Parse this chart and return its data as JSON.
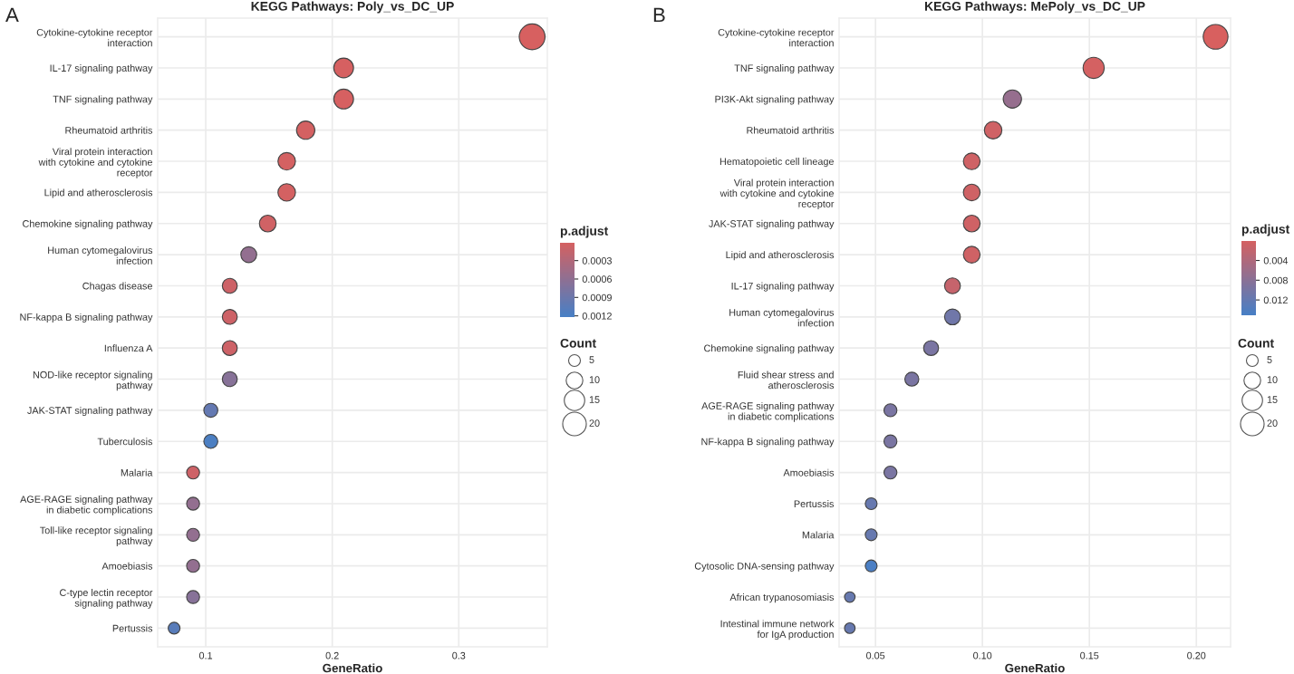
{
  "chart_data": [
    {
      "type": "bubble",
      "orientation": "horizontal",
      "title": "KEGG Pathways: Poly_vs_DC_UP",
      "xlabel": "GeneRatio",
      "clabel": "p.adjust",
      "legend_title": "Count",
      "grid": true,
      "annotations": [
        "A"
      ],
      "categories": [
        "Cytokine-cytokine receptor\ninteraction",
        "IL-17 signaling pathway",
        "TNF signaling pathway",
        "Rheumatoid arthritis",
        "Viral protein interaction\nwith cytokine and cytokine\nreceptor",
        "Lipid and atherosclerosis",
        "Chemokine signaling pathway",
        "Human cytomegalovirus\ninfection",
        "Chagas disease",
        "NF-kappa B signaling pathway",
        "Influenza A",
        "NOD-like receptor signaling\npathway",
        "JAK-STAT signaling pathway",
        "Tuberculosis",
        "Malaria",
        "AGE-RAGE signaling pathway\nin diabetic complications",
        "Toll-like receptor signaling\npathway",
        "Amoebiasis",
        "C-type lectin receptor\nsignaling pathway",
        "Pertussis"
      ],
      "values": [
        0.358,
        0.209,
        0.209,
        0.179,
        0.164,
        0.164,
        0.149,
        0.134,
        0.119,
        0.119,
        0.119,
        0.119,
        0.104,
        0.104,
        0.09,
        0.09,
        0.09,
        0.09,
        0.09,
        0.075
      ],
      "sizes": [
        24,
        14,
        14,
        12,
        11,
        11,
        10,
        9,
        8,
        8,
        8,
        8,
        7,
        7,
        6,
        6,
        6,
        6,
        6,
        5
      ],
      "cvalues": [
        2e-05,
        3e-05,
        3e-05,
        5e-05,
        5e-05,
        5e-05,
        8e-05,
        0.0006,
        0.0001,
        0.0001,
        0.0001,
        0.0007,
        0.001,
        0.0012,
        0.0001,
        0.0006,
        0.0006,
        0.0006,
        0.0007,
        0.0011
      ],
      "size_legend": [
        5,
        10,
        15,
        20
      ],
      "clim": [
        0.00122,
        1e-05
      ],
      "cticks": [
        0.0003,
        0.0006,
        0.0009,
        0.0012
      ],
      "xlim": [
        0.062,
        0.37
      ],
      "xticks": [
        0.1,
        0.2,
        0.3
      ]
    },
    {
      "type": "bubble",
      "orientation": "horizontal",
      "title": "KEGG Pathways: MePoly_vs_DC_UP",
      "xlabel": "GeneRatio",
      "clabel": "p.adjust",
      "legend_title": "Count",
      "grid": true,
      "annotations": [
        "B"
      ],
      "categories": [
        "Cytokine-cytokine receptor\ninteraction",
        "TNF signaling pathway",
        "PI3K-Akt signaling pathway",
        "Rheumatoid arthritis",
        "Hematopoietic cell lineage",
        "Viral protein interaction\nwith cytokine and cytokine\nreceptor",
        "JAK-STAT signaling pathway",
        "Lipid and atherosclerosis",
        "IL-17 signaling pathway",
        "Human cytomegalovirus\ninfection",
        "Chemokine signaling pathway",
        "Fluid shear stress and\natherosclerosis",
        "AGE-RAGE signaling pathway\nin diabetic complications",
        "NF-kappa B signaling pathway",
        "Amoebiasis",
        "Pertussis",
        "Malaria",
        "Cytosolic DNA-sensing pathway",
        "African trypanosomiasis",
        "Intestinal immune network\nfor IgA production"
      ],
      "values": [
        0.209,
        0.152,
        0.114,
        0.105,
        0.095,
        0.095,
        0.095,
        0.095,
        0.086,
        0.086,
        0.076,
        0.067,
        0.057,
        0.057,
        0.057,
        0.048,
        0.048,
        0.048,
        0.038,
        0.038
      ],
      "sizes": [
        22,
        16,
        12,
        11,
        10,
        10,
        10,
        10,
        9,
        9,
        8,
        7,
        6,
        6,
        6,
        5,
        5,
        5,
        4,
        4
      ],
      "cvalues": [
        0.0001,
        0.0005,
        0.007,
        0.001,
        0.001,
        0.001,
        0.001,
        0.001,
        0.002,
        0.011,
        0.01,
        0.01,
        0.01,
        0.01,
        0.01,
        0.012,
        0.012,
        0.015,
        0.012,
        0.012
      ],
      "size_legend": [
        5,
        10,
        15,
        20
      ],
      "clim": [
        0.0151,
        5e-05
      ],
      "cticks": [
        0.004,
        0.008,
        0.012
      ],
      "xlim": [
        0.033,
        0.216
      ],
      "xticks": [
        {
          "value": 0.05,
          "label": "0.05"
        },
        {
          "value": 0.1,
          "label": "0.10"
        },
        {
          "value": 0.15,
          "label": "0.15"
        },
        {
          "value": 0.2,
          "label": "0.20"
        }
      ]
    }
  ]
}
